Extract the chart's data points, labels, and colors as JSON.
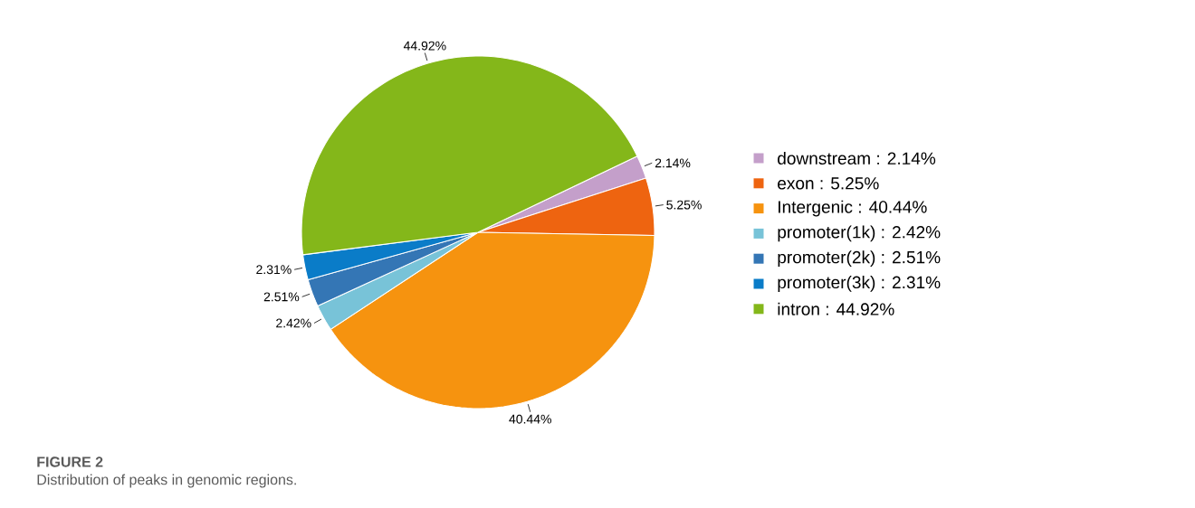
{
  "chart_data": {
    "type": "pie",
    "title": "FIGURE 2",
    "subtitle": "Distribution of peaks in genomic regions.",
    "categories": [
      "downstream : 2.14%",
      "exon : 5.25%",
      "Intergenic : 40.44%",
      "promoter(1k) : 2.42%",
      "promoter(2k) : 2.51%",
      "promoter(3k) : 2.31%",
      "intron : 44.92%"
    ],
    "values": [
      2.14,
      5.25,
      40.44,
      2.42,
      2.51,
      2.31,
      44.92
    ],
    "value_labels": [
      "2.14%",
      "5.25%",
      "40.44%",
      "2.42%",
      "2.51%",
      "2.31%",
      "44.92%"
    ],
    "colors": [
      "#c49fca",
      "#ee6410",
      "#f6930f",
      "#78c3d8",
      "#3476b5",
      "#0a7cc8",
      "#84b71a"
    ],
    "legend": "right"
  }
}
